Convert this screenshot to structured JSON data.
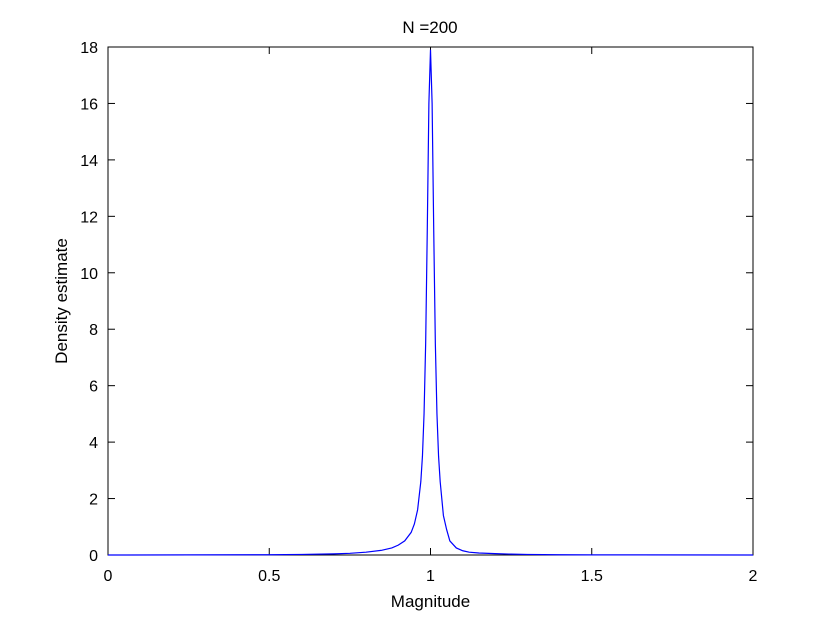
{
  "chart_data": {
    "type": "line",
    "title": "N =200",
    "xlabel": "Magnitude",
    "ylabel": "Density estimate",
    "xlim": [
      0,
      2
    ],
    "ylim": [
      0,
      18
    ],
    "xticks": [
      0,
      0.5,
      1,
      1.5,
      2
    ],
    "xtick_labels": [
      "0",
      "0.5",
      "1",
      "1.5",
      "2"
    ],
    "yticks": [
      0,
      2,
      4,
      6,
      8,
      10,
      12,
      14,
      16,
      18
    ],
    "ytick_labels": [
      "0",
      "2",
      "4",
      "6",
      "8",
      "10",
      "12",
      "14",
      "16",
      "18"
    ],
    "grid": false,
    "box": true,
    "line_color": "#0000ff",
    "series": [
      {
        "x": [
          0,
          0.5,
          0.6,
          0.7,
          0.75,
          0.8,
          0.85,
          0.88,
          0.9,
          0.92,
          0.94,
          0.95,
          0.96,
          0.97,
          0.975,
          0.98,
          0.985,
          0.99,
          0.995,
          1.0,
          1.005,
          1.01,
          1.015,
          1.02,
          1.025,
          1.03,
          1.04,
          1.05,
          1.06,
          1.08,
          1.1,
          1.12,
          1.15,
          1.2,
          1.25,
          1.3,
          1.4,
          1.5,
          2.0
        ],
        "y": [
          0,
          0.01,
          0.02,
          0.04,
          0.06,
          0.1,
          0.17,
          0.25,
          0.35,
          0.5,
          0.8,
          1.1,
          1.6,
          2.6,
          3.5,
          5.0,
          7.5,
          11.5,
          16.0,
          17.9,
          16.0,
          11.5,
          7.5,
          5.0,
          3.5,
          2.6,
          1.4,
          0.9,
          0.5,
          0.25,
          0.15,
          0.1,
          0.07,
          0.05,
          0.03,
          0.02,
          0.01,
          0.005,
          0
        ]
      }
    ]
  }
}
